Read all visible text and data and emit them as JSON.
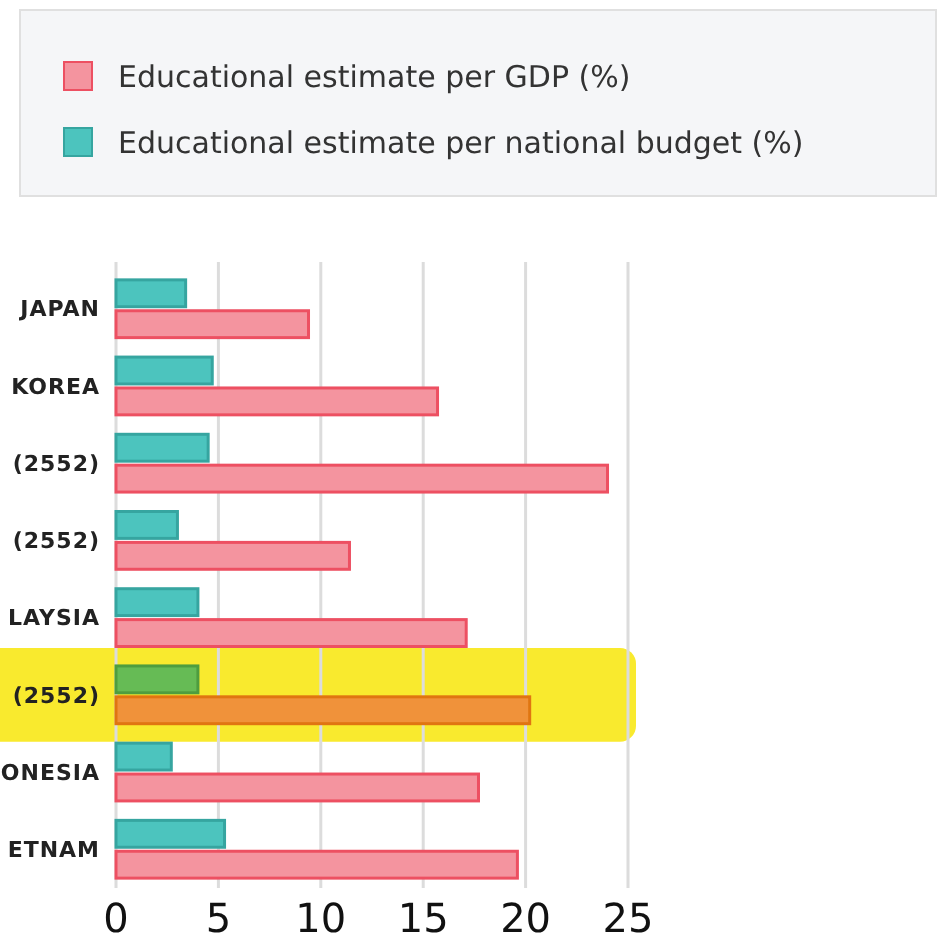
{
  "chart_data": {
    "type": "bar",
    "orientation": "horizontal",
    "categories": [
      "JAPAN",
      "KOREA",
      "(2552)",
      "(2552)",
      "LAYSIA",
      "(2552)",
      "ONESIA",
      "ETNAM"
    ],
    "series": [
      {
        "name": "Educational estimate per GDP (%)",
        "color": "#f4949f",
        "colors": [
          "#f4949f",
          "#f4949f",
          "#f4949f",
          "#f4949f",
          "#f4949f",
          "#f0923a",
          "#f4949f",
          "#f4949f"
        ],
        "values": [
          9.4,
          15.7,
          24.0,
          11.4,
          17.1,
          20.2,
          17.7,
          19.6
        ]
      },
      {
        "name": "Educational estimate per national budget (%)",
        "color": "#4cc4be",
        "colors": [
          "#4cc4be",
          "#4cc4be",
          "#4cc4be",
          "#4cc4be",
          "#4cc4be",
          "#66bb55",
          "#4cc4be",
          "#4cc4be"
        ],
        "values": [
          3.4,
          4.7,
          4.5,
          3.0,
          4.0,
          4.0,
          2.7,
          5.3
        ]
      }
    ],
    "xlim": [
      0,
      25
    ],
    "xticks": [
      0,
      5,
      10,
      15,
      20,
      25
    ],
    "grid": "x",
    "legend": "top"
  }
}
